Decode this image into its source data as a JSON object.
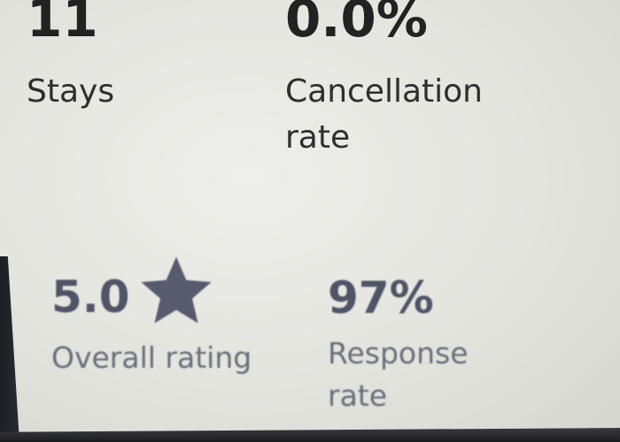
{
  "stats": [
    {
      "value": "11",
      "label": "Stays"
    },
    {
      "value": "0.0%",
      "label": "Cancellation rate",
      "label_lines": [
        "Cancellation",
        "rate"
      ]
    },
    {
      "value": "5.0",
      "label": "Overall rating",
      "icon": "star-icon"
    },
    {
      "value": "97%",
      "label": "Response rate",
      "label_lines": [
        "Response",
        "rate"
      ]
    }
  ],
  "colors": {
    "primary_text": "#222222",
    "rating_text": "#4f5466",
    "background": "#e6e6e1"
  }
}
